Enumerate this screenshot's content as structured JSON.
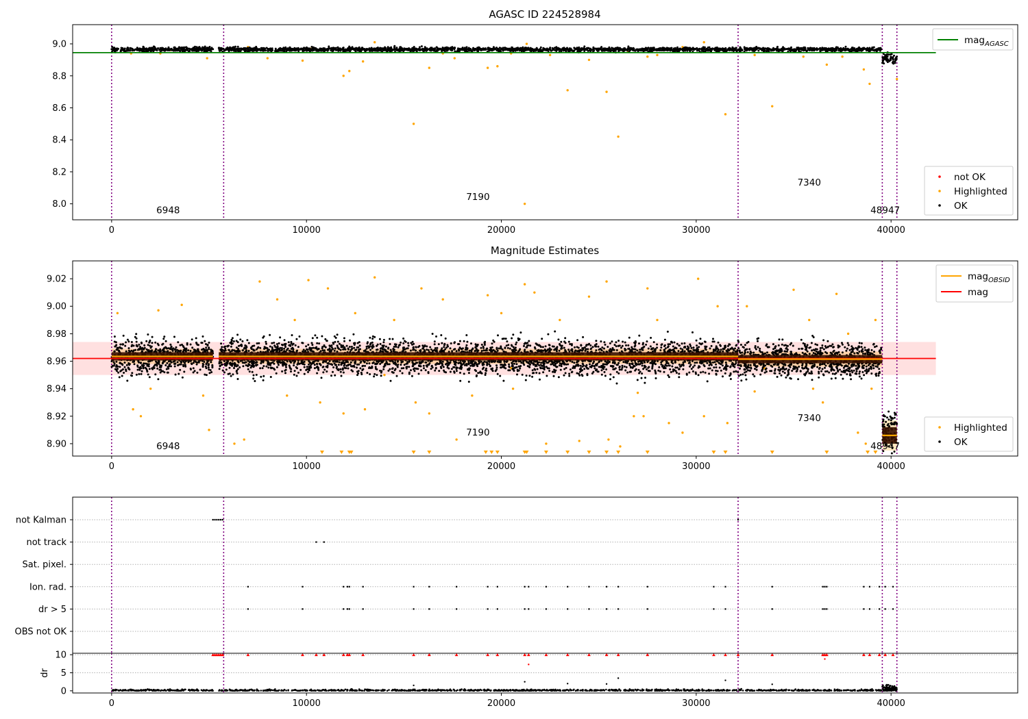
{
  "chart_data": [
    {
      "type": "scatter",
      "title": "AGASC ID 224528984",
      "xlim": [
        -2000,
        46500
      ],
      "ylim": [
        7.9,
        9.12
      ],
      "x_ticks": [
        0,
        10000,
        20000,
        30000,
        40000
      ],
      "x_tick_labels": [
        "0",
        "10000",
        "20000",
        "30000",
        "40000"
      ],
      "y_ticks": [
        8.0,
        8.2,
        8.4,
        8.6,
        8.8,
        9.0
      ],
      "y_tick_labels": [
        "8.0",
        "8.2",
        "8.4",
        "8.6",
        "8.8",
        "9.0"
      ],
      "obsid_boundaries": [
        0,
        5750,
        32150,
        39550,
        40300
      ],
      "obsid_labels": [
        {
          "text": "6948",
          "x": 2900,
          "y": 7.94
        },
        {
          "text": "7190",
          "x": 18800,
          "y": 8.025
        },
        {
          "text": "7340",
          "x": 35800,
          "y": 8.115
        },
        {
          "text": "48947",
          "x": 39700,
          "y": 7.94
        }
      ],
      "ok_bands": [
        {
          "x0": 0,
          "x1": 5200,
          "y": 8.965,
          "spread": 0.012
        },
        {
          "x0": 5500,
          "x1": 39500,
          "y": 8.965,
          "spread": 0.012
        },
        {
          "x0": 39550,
          "x1": 40300,
          "y": 8.905,
          "spread": 0.03
        }
      ],
      "highlighted_points": [
        [
          7000,
          8.98
        ],
        [
          9800,
          8.895
        ],
        [
          10200,
          8.97
        ],
        [
          11900,
          8.8
        ],
        [
          12200,
          8.83
        ],
        [
          12900,
          8.89
        ],
        [
          13500,
          9.01
        ],
        [
          15500,
          8.5
        ],
        [
          16300,
          8.85
        ],
        [
          17600,
          8.91
        ],
        [
          19300,
          8.85
        ],
        [
          19800,
          8.86
        ],
        [
          21200,
          8.0
        ],
        [
          21300,
          9.0
        ],
        [
          23400,
          8.71
        ],
        [
          24500,
          8.9
        ],
        [
          25400,
          8.7
        ],
        [
          26000,
          8.42
        ],
        [
          27500,
          8.92
        ],
        [
          29300,
          8.98
        ],
        [
          30400,
          9.01
        ],
        [
          31500,
          8.56
        ],
        [
          33900,
          8.61
        ],
        [
          35500,
          8.92
        ],
        [
          36700,
          8.87
        ],
        [
          38600,
          8.84
        ],
        [
          38900,
          8.75
        ],
        [
          40300,
          8.78
        ],
        [
          4900,
          8.91
        ],
        [
          1000,
          8.94
        ],
        [
          2500,
          8.94
        ],
        [
          17000,
          8.94
        ],
        [
          22500,
          8.93
        ],
        [
          28000,
          8.93
        ],
        [
          33000,
          8.93
        ],
        [
          37500,
          8.92
        ],
        [
          8000,
          8.91
        ],
        [
          20500,
          8.94
        ],
        [
          26500,
          8.95
        ],
        [
          3000,
          8.96
        ]
      ],
      "mag_agasc": 8.945,
      "mag_agasc_xrange": [
        -2000,
        42300
      ],
      "legend_lines": [
        {
          "label": "mag",
          "sub": "AGASC",
          "color": "#008000"
        }
      ],
      "legend_markers": [
        {
          "label": "not OK",
          "color": "#ff0000"
        },
        {
          "label": "Highlighted",
          "color": "#ffa500"
        },
        {
          "label": "OK",
          "color": "#000000"
        }
      ]
    },
    {
      "type": "scatter",
      "title": "Magnitude Estimates",
      "xlim": [
        -2000,
        46500
      ],
      "ylim": [
        8.891,
        9.033
      ],
      "x_ticks": [
        0,
        10000,
        20000,
        30000,
        40000
      ],
      "x_tick_labels": [
        "0",
        "10000",
        "20000",
        "30000",
        "40000"
      ],
      "y_ticks": [
        8.9,
        8.92,
        8.94,
        8.96,
        8.98,
        9.0,
        9.02
      ],
      "y_tick_labels": [
        "8.90",
        "8.92",
        "8.94",
        "8.96",
        "8.98",
        "9.00",
        "9.02"
      ],
      "obsid_boundaries": [
        0,
        5750,
        32150,
        39550,
        40300
      ],
      "obsid_labels": [
        {
          "text": "6948",
          "x": 2900,
          "y": 8.896
        },
        {
          "text": "7190",
          "x": 18800,
          "y": 8.906
        },
        {
          "text": "7340",
          "x": 35800,
          "y": 8.9165
        },
        {
          "text": "48947",
          "x": 39700,
          "y": 8.896
        }
      ],
      "mag": 8.962,
      "mag_std": 0.006,
      "mag_xrange": [
        -2000,
        42300
      ],
      "mag_obsid_segments": [
        {
          "x0": 0,
          "x1": 5200,
          "y": 8.9635,
          "std": 0.0055
        },
        {
          "x0": 5500,
          "x1": 32150,
          "y": 8.9635,
          "std": 0.0055
        },
        {
          "x0": 32150,
          "x1": 39550,
          "y": 8.9615,
          "std": 0.0055
        },
        {
          "x0": 39550,
          "x1": 40300,
          "y": 8.906,
          "std": 0.011
        }
      ],
      "ok_bands": [
        {
          "x0": 0,
          "x1": 5200,
          "y": 8.963,
          "spread": 0.011
        },
        {
          "x0": 5500,
          "x1": 32150,
          "y": 8.963,
          "spread": 0.011
        },
        {
          "x0": 32150,
          "x1": 39500,
          "y": 8.961,
          "spread": 0.011
        },
        {
          "x0": 39550,
          "x1": 40300,
          "y": 8.91,
          "spread": 0.012
        }
      ],
      "highlighted_points": [
        [
          300,
          8.995
        ],
        [
          1100,
          8.925
        ],
        [
          1500,
          8.92
        ],
        [
          2400,
          8.997
        ],
        [
          3600,
          9.001
        ],
        [
          4700,
          8.935
        ],
        [
          5000,
          8.91
        ],
        [
          6300,
          8.9
        ],
        [
          6800,
          8.903
        ],
        [
          7600,
          9.018
        ],
        [
          8500,
          9.005
        ],
        [
          9400,
          8.99
        ],
        [
          10100,
          9.019
        ],
        [
          10700,
          8.93
        ],
        [
          11100,
          9.013
        ],
        [
          11900,
          8.922
        ],
        [
          12500,
          8.995
        ],
        [
          13000,
          8.925
        ],
        [
          13500,
          9.021
        ],
        [
          14500,
          8.99
        ],
        [
          15600,
          8.93
        ],
        [
          15900,
          9.013
        ],
        [
          16300,
          8.922
        ],
        [
          17000,
          9.005
        ],
        [
          17700,
          8.903
        ],
        [
          18500,
          8.935
        ],
        [
          19300,
          9.008
        ],
        [
          20000,
          8.995
        ],
        [
          20600,
          8.94
        ],
        [
          21200,
          9.016
        ],
        [
          21700,
          9.01
        ],
        [
          22300,
          8.9
        ],
        [
          23000,
          8.99
        ],
        [
          24000,
          8.902
        ],
        [
          24500,
          9.007
        ],
        [
          25400,
          9.018
        ],
        [
          25500,
          8.903
        ],
        [
          26100,
          8.898
        ],
        [
          26800,
          8.92
        ],
        [
          27300,
          8.92
        ],
        [
          27500,
          9.013
        ],
        [
          28000,
          8.99
        ],
        [
          28600,
          8.915
        ],
        [
          29300,
          8.908
        ],
        [
          30100,
          9.02
        ],
        [
          30400,
          8.92
        ],
        [
          31100,
          9.0
        ],
        [
          31600,
          8.915
        ],
        [
          32600,
          9.0
        ],
        [
          33500,
          8.955
        ],
        [
          35000,
          9.012
        ],
        [
          35800,
          8.99
        ],
        [
          36500,
          8.93
        ],
        [
          37200,
          9.009
        ],
        [
          37800,
          8.98
        ],
        [
          38300,
          8.908
        ],
        [
          38700,
          8.9
        ],
        [
          39200,
          8.99
        ],
        [
          39000,
          8.94
        ],
        [
          2000,
          8.94
        ],
        [
          9000,
          8.935
        ],
        [
          14000,
          8.95
        ],
        [
          20500,
          8.955
        ],
        [
          27000,
          8.937
        ],
        [
          33000,
          8.938
        ],
        [
          36000,
          8.94
        ]
      ],
      "below_range_triangles": [
        10800,
        11800,
        12200,
        12300,
        15500,
        16300,
        19200,
        19500,
        19800,
        21200,
        21300,
        22300,
        23400,
        24500,
        25400,
        26000,
        27500,
        30900,
        31500,
        33900,
        36700,
        38800,
        39200
      ],
      "legend_lines": [
        {
          "label": "mag",
          "sub": "OBSID",
          "color": "#ffa500"
        },
        {
          "label": "mag",
          "sub": "",
          "color": "#ff0000"
        }
      ],
      "legend_markers": [
        {
          "label": "Highlighted",
          "color": "#ffa500"
        },
        {
          "label": "OK",
          "color": "#000000"
        }
      ]
    },
    {
      "type": "scatter",
      "title": "",
      "xlim": [
        -2000,
        46500
      ],
      "x_ticks": [
        0,
        10000,
        20000,
        30000,
        40000
      ],
      "x_tick_labels": [
        "0",
        "10000",
        "20000",
        "30000",
        "40000"
      ],
      "obsid_boundaries": [
        0,
        5750,
        32150,
        39550,
        40300
      ],
      "flag_rows": [
        "not Kalman",
        "not track",
        "Sat. pixel.",
        "Ion. rad.",
        "dr > 5",
        "OBS not OK"
      ],
      "flag_points": {
        "not Kalman": [
          5200,
          5300,
          5400,
          5500,
          5600,
          5700,
          32150
        ],
        "not track": [
          10500,
          10900
        ],
        "Sat. pixel.": [],
        "Ion. rad.": [
          7000,
          9800,
          11900,
          12100,
          12200,
          12900,
          15500,
          16300,
          17700,
          19300,
          19800,
          21200,
          21400,
          22300,
          23400,
          24500,
          25400,
          26000,
          27500,
          30900,
          31500,
          33900,
          36500,
          36600,
          36700,
          38600,
          38900,
          39400,
          39700,
          40100
        ],
        "dr > 5": [
          7000,
          9800,
          11900,
          12100,
          12200,
          12900,
          15500,
          16300,
          17700,
          19300,
          19800,
          21200,
          21400,
          22300,
          23400,
          24500,
          25400,
          26000,
          27500,
          30900,
          31500,
          33900,
          36500,
          36600,
          36700,
          38600,
          38900,
          39400,
          39700,
          40100
        ],
        "OBS not OK": []
      },
      "dr": {
        "ylabel": "dr",
        "y_ticks": [
          0,
          5,
          10
        ],
        "y_tick_labels": [
          "0",
          "5",
          "10"
        ],
        "ylim": [
          -0.6,
          10.4
        ],
        "clipped_value": 10,
        "clipped_x": [
          5200,
          5300,
          5400,
          5500,
          5600,
          5700,
          7000,
          9800,
          10500,
          10900,
          11900,
          12100,
          12200,
          12900,
          15500,
          16300,
          17700,
          19300,
          19800,
          21200,
          21400,
          22300,
          23400,
          24500,
          25400,
          26000,
          27500,
          30900,
          31500,
          32150,
          33900,
          36500,
          36600,
          36700,
          38600,
          38900,
          39400,
          39700,
          40100
        ],
        "outliers": [
          [
            21400,
            7.3
          ],
          [
            36600,
            8.8
          ],
          [
            21200,
            2.5
          ],
          [
            26000,
            3.5
          ],
          [
            31500,
            2.9
          ],
          [
            15500,
            1.5
          ],
          [
            23400,
            2.0
          ],
          [
            25400,
            1.9
          ],
          [
            33900,
            1.8
          ]
        ]
      }
    }
  ]
}
